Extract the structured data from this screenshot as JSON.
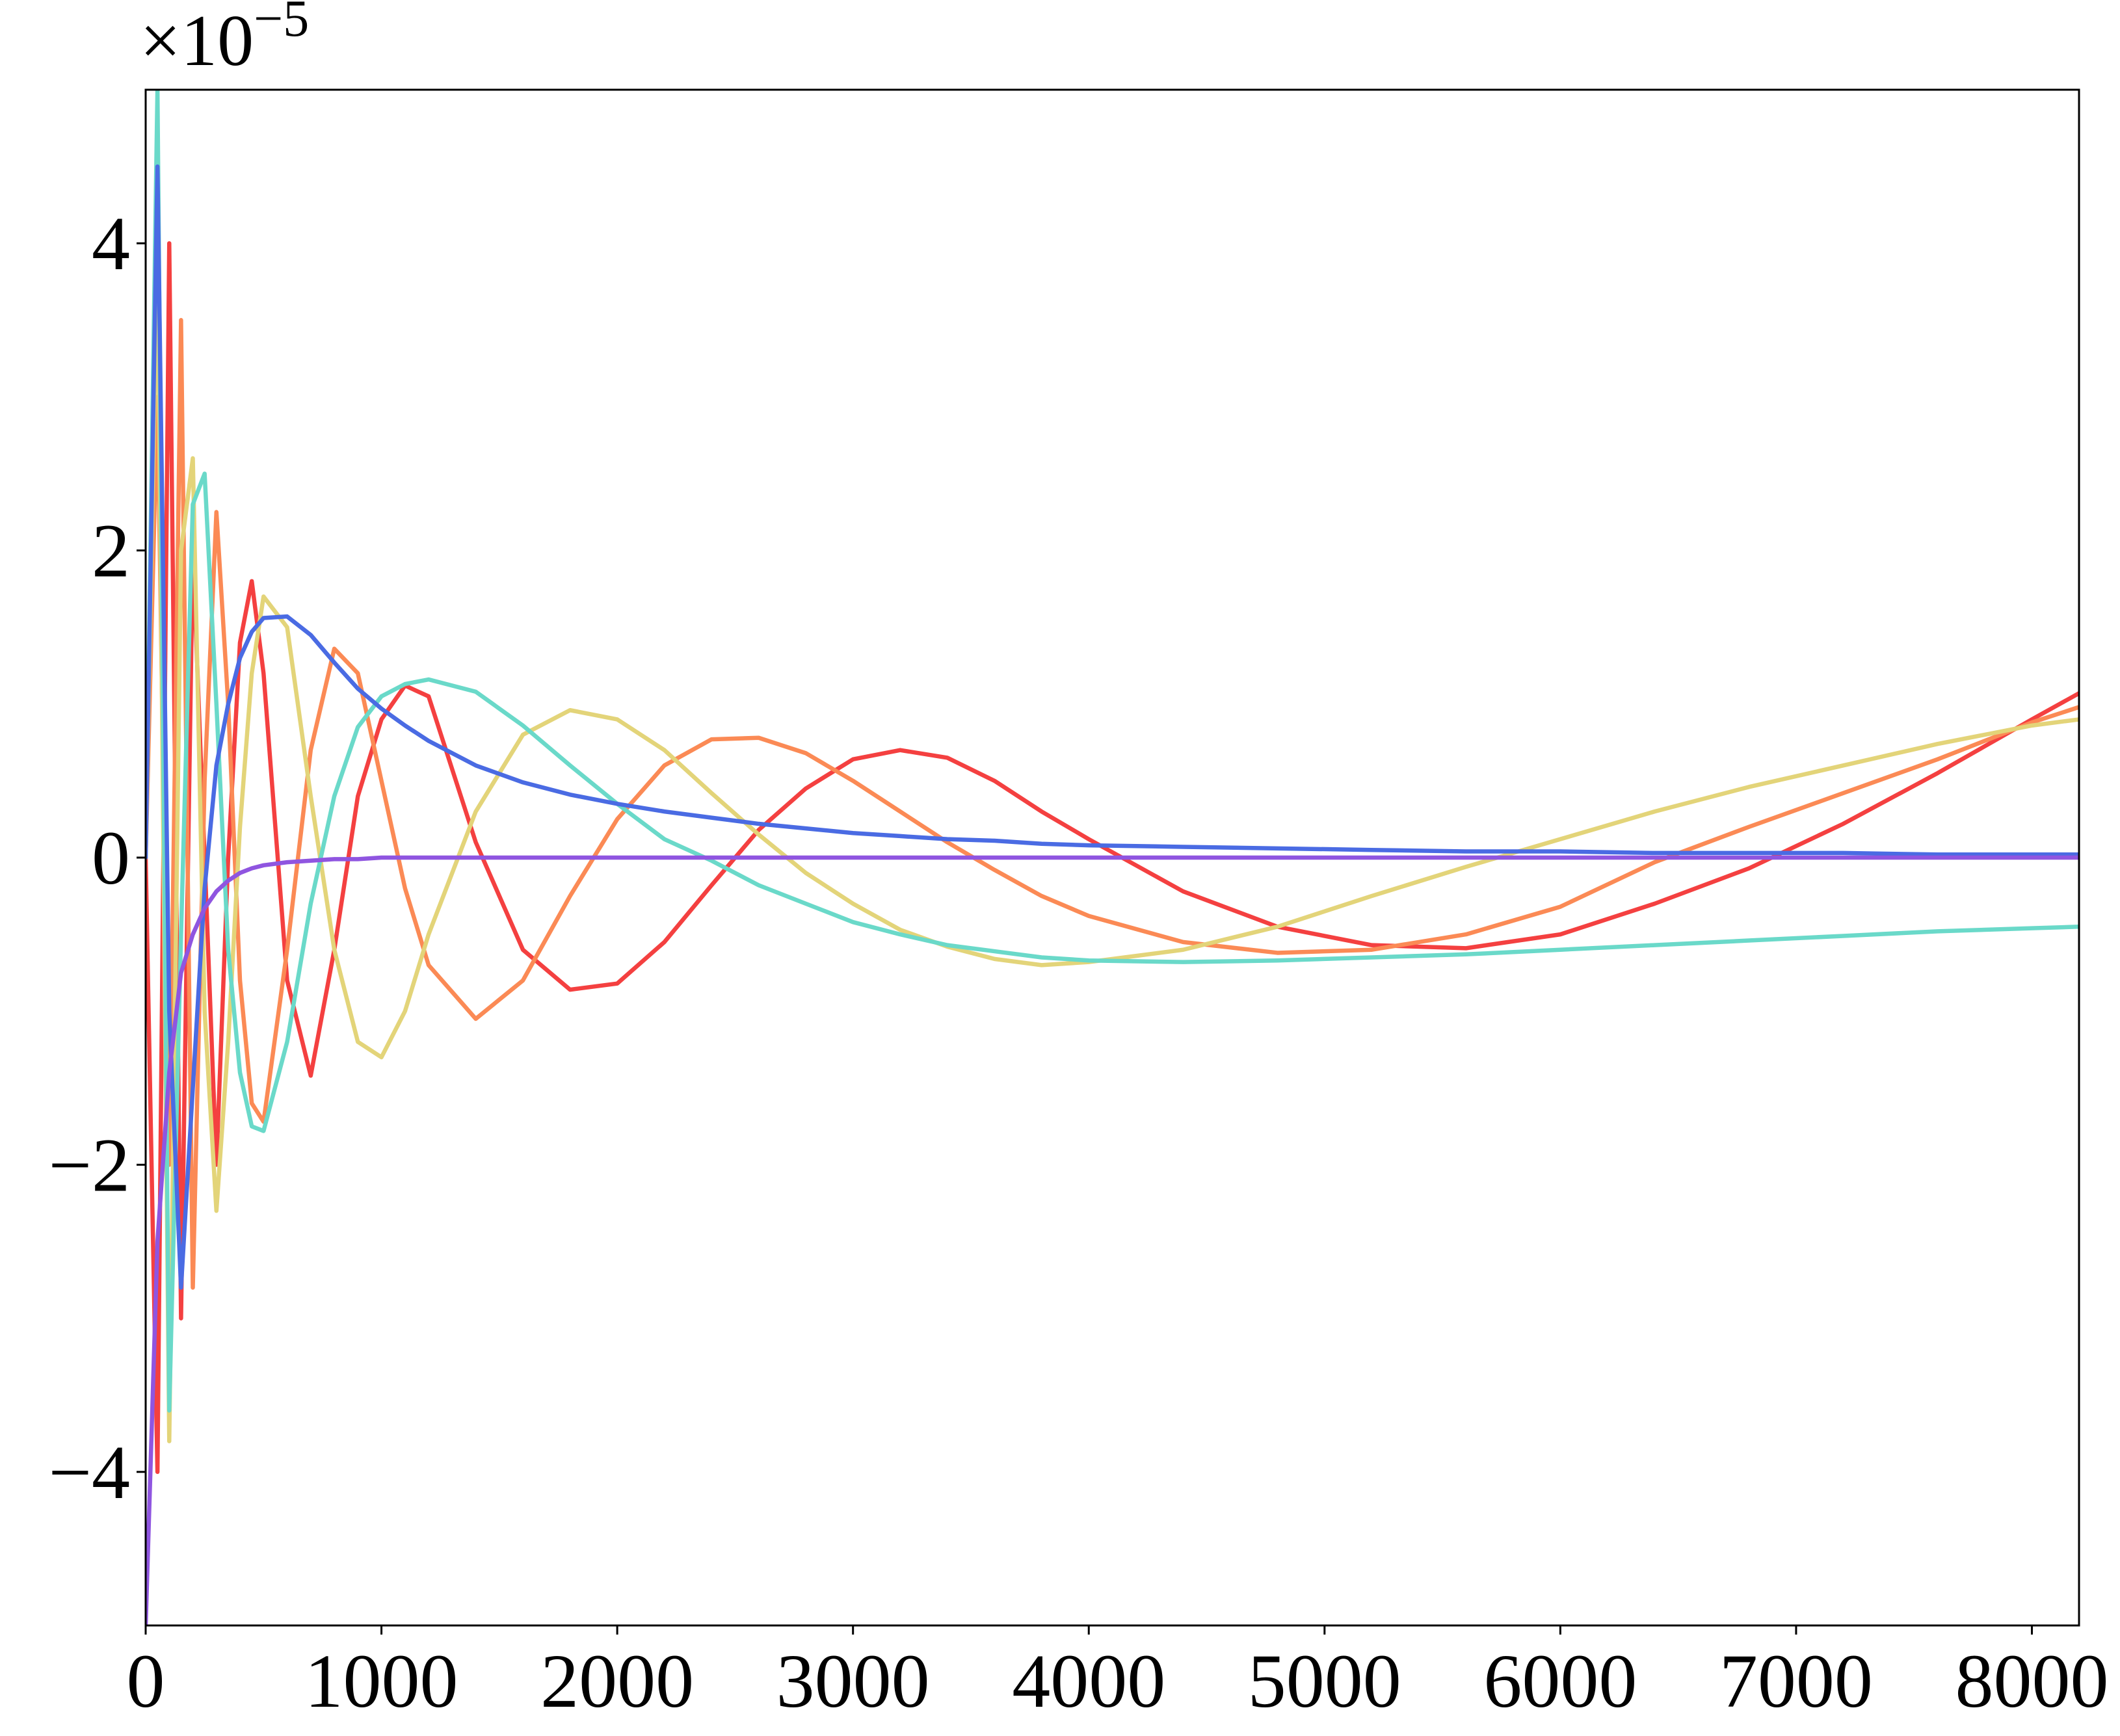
{
  "chart_data": {
    "type": "line",
    "y_multiplier": {
      "base": "×10",
      "exponent": "−5"
    },
    "x": [
      0,
      50,
      100,
      150,
      200,
      250,
      300,
      350,
      400,
      450,
      500,
      600,
      700,
      800,
      900,
      1000,
      1100,
      1200,
      1400,
      1600,
      1800,
      2000,
      2200,
      2400,
      2600,
      2800,
      3000,
      3200,
      3400,
      3600,
      3800,
      4000,
      4400,
      4800,
      5200,
      5600,
      6000,
      6400,
      6800,
      7200,
      7600,
      8000,
      8200
    ],
    "series": [
      {
        "color": "#f44040",
        "values": [
          0,
          -4,
          4,
          -3,
          2,
          0,
          -2,
          0,
          1.4,
          1.8,
          1.2,
          -0.8,
          -1.42,
          -0.6,
          0.4,
          0.9,
          1.12,
          1.05,
          0.1,
          -0.6,
          -0.86,
          -0.82,
          -0.55,
          -0.18,
          0.18,
          0.45,
          0.64,
          0.7,
          0.65,
          0.5,
          0.3,
          0.12,
          -0.22,
          -0.45,
          -0.57,
          -0.59,
          -0.5,
          -0.3,
          -0.07,
          0.22,
          0.55,
          0.9,
          1.07
        ]
      },
      {
        "color": "#fb8a55",
        "values": [
          0,
          3,
          -2,
          3.5,
          -2.8,
          0.5,
          2.25,
          1,
          -0.8,
          -1.6,
          -1.72,
          -0.6,
          0.7,
          1.36,
          1.2,
          0.5,
          -0.2,
          -0.7,
          -1.05,
          -0.8,
          -0.25,
          0.25,
          0.6,
          0.77,
          0.78,
          0.68,
          0.5,
          0.3,
          0.1,
          -0.08,
          -0.25,
          -0.38,
          -0.55,
          -0.62,
          -0.6,
          -0.5,
          -0.32,
          -0.03,
          0.2,
          0.42,
          0.64,
          0.88,
          0.98
        ]
      },
      {
        "color": "#e3d479",
        "values": [
          0,
          4,
          -3.8,
          2,
          2.6,
          -1,
          -2.3,
          -1.2,
          0.2,
          1.2,
          1.7,
          1.5,
          0.4,
          -0.6,
          -1.2,
          -1.3,
          -1,
          -0.5,
          0.3,
          0.8,
          0.96,
          0.9,
          0.7,
          0.42,
          0.15,
          -0.1,
          -0.3,
          -0.47,
          -0.58,
          -0.66,
          -0.7,
          -0.68,
          -0.6,
          -0.45,
          -0.25,
          -0.06,
          0.12,
          0.3,
          0.46,
          0.6,
          0.74,
          0.86,
          0.9
        ]
      },
      {
        "color": "#6ad9c9",
        "values": [
          0,
          5,
          -3.6,
          -0.5,
          2.3,
          2.5,
          1,
          -0.6,
          -1.4,
          -1.75,
          -1.78,
          -1.2,
          -0.3,
          0.4,
          0.85,
          1.05,
          1.13,
          1.16,
          1.08,
          0.86,
          0.6,
          0.35,
          0.12,
          -0.02,
          -0.18,
          -0.3,
          -0.42,
          -0.5,
          -0.57,
          -0.61,
          -0.65,
          -0.67,
          -0.68,
          -0.67,
          -0.65,
          -0.63,
          -0.6,
          -0.57,
          -0.54,
          -0.51,
          -0.48,
          -0.46,
          -0.45
        ]
      },
      {
        "color": "#4a6be3",
        "values": [
          0,
          4.5,
          -1,
          -2.8,
          -1.5,
          -0.2,
          0.6,
          1,
          1.3,
          1.47,
          1.56,
          1.57,
          1.45,
          1.27,
          1.1,
          0.97,
          0.86,
          0.76,
          0.6,
          0.49,
          0.41,
          0.35,
          0.3,
          0.26,
          0.22,
          0.19,
          0.16,
          0.14,
          0.12,
          0.11,
          0.09,
          0.08,
          0.07,
          0.06,
          0.05,
          0.04,
          0.04,
          0.03,
          0.03,
          0.03,
          0.02,
          0.02,
          0.02
        ]
      },
      {
        "color": "#8f55e0",
        "values": [
          -5,
          -2.5,
          -1.4,
          -0.75,
          -0.5,
          -0.33,
          -0.22,
          -0.15,
          -0.1,
          -0.07,
          -0.05,
          -0.03,
          -0.02,
          -0.01,
          -0.01,
          0,
          0,
          0,
          0,
          0,
          0,
          0,
          0,
          0,
          0,
          0,
          0,
          0,
          0,
          0,
          0,
          0,
          0,
          0,
          0,
          0,
          0,
          0,
          0,
          0,
          0,
          0,
          0
        ]
      }
    ],
    "xlim": [
      0,
      8200
    ],
    "ylim": [
      -5,
      5
    ],
    "xticks": [
      0,
      1000,
      2000,
      3000,
      4000,
      5000,
      6000,
      7000,
      8000
    ],
    "yticks": [
      {
        "value": -4,
        "label": "−4"
      },
      {
        "value": -2,
        "label": "−2"
      },
      0,
      2,
      4
    ],
    "grid": false
  }
}
